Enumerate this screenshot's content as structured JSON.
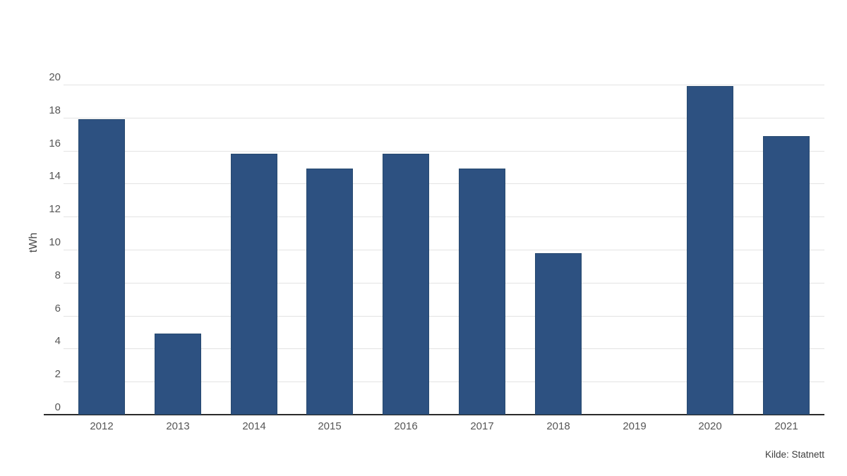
{
  "chart_data": {
    "type": "bar",
    "title": "",
    "categories": [
      "2012",
      "2013",
      "2014",
      "2015",
      "2016",
      "2017",
      "2018",
      "2019",
      "2020",
      "2021"
    ],
    "values": [
      17.9,
      4.9,
      15.8,
      14.9,
      15.8,
      14.9,
      9.8,
      0,
      19.9,
      16.9
    ],
    "ylabel": "tWh",
    "xlabel": "",
    "ylim": [
      0,
      20
    ],
    "yticks": [
      0,
      2,
      4,
      6,
      8,
      10,
      12,
      14,
      16,
      18,
      20
    ],
    "grid": true,
    "legend": false,
    "bar_color": "#2d5181",
    "bar_border_color": "#27496f",
    "axis_line_color": "#2b2b2b",
    "gridline_color": "#e3e3e3",
    "tick_label_color": "#565656",
    "source_note": "Kilde: Statnett"
  }
}
